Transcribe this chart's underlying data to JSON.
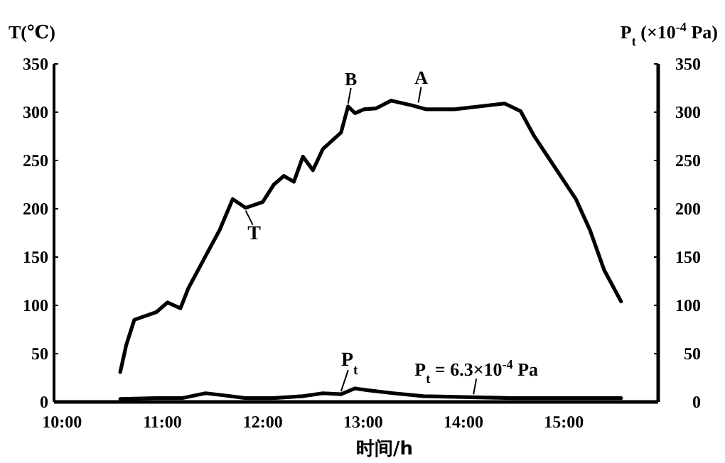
{
  "chart_data": {
    "type": "line",
    "ylabel": "T(℃)",
    "y2label": "P$_{t}$ (×10$^{-4}$ Pa)",
    "xlabel": "时间/h",
    "xlim": [
      9.92,
      15.94
    ],
    "xticks": [
      {
        "value": 10,
        "label": "10:00"
      },
      {
        "value": 11,
        "label": "11:00"
      },
      {
        "value": 12,
        "label": "12:00"
      },
      {
        "value": 13,
        "label": "13:00"
      },
      {
        "value": 14,
        "label": "14:00"
      },
      {
        "value": 15,
        "label": "15:00"
      }
    ],
    "ylim": [
      0,
      350
    ],
    "yticks": [
      0,
      50,
      100,
      150,
      200,
      250,
      300,
      350
    ],
    "y2lim": [
      0,
      350
    ],
    "y2ticks": [
      0,
      50,
      100,
      150,
      200,
      250,
      300,
      350
    ],
    "series": [
      {
        "name": "T",
        "color": "#000000",
        "x": [
          10.58,
          10.64,
          10.72,
          10.94,
          11.05,
          11.18,
          11.26,
          11.43,
          11.57,
          11.7,
          11.83,
          12.0,
          12.11,
          12.21,
          12.31,
          12.4,
          12.5,
          12.6,
          12.78,
          12.85,
          12.92,
          13.01,
          13.13,
          13.28,
          13.49,
          13.63,
          13.91,
          14.41,
          14.57,
          14.7,
          14.91,
          15.12,
          15.26,
          15.4,
          15.57
        ],
        "values": [
          31,
          59,
          85,
          93,
          103,
          97,
          118,
          151,
          178,
          210,
          201,
          207,
          225,
          234,
          228,
          254,
          240,
          262,
          279,
          306,
          299,
          303,
          304,
          312,
          307,
          303,
          303,
          309,
          301,
          276,
          243,
          210,
          178,
          137,
          104
        ]
      },
      {
        "name": "P$_{t}$",
        "color": "#000000",
        "axis": "y2",
        "x": [
          10.58,
          10.94,
          11.2,
          11.43,
          11.6,
          11.83,
          12.1,
          12.4,
          12.6,
          12.78,
          12.92,
          13.05,
          13.3,
          13.6,
          14.0,
          14.5,
          15.0,
          15.57
        ],
        "values": [
          3,
          4,
          4,
          9,
          7,
          4,
          4,
          6,
          9,
          8,
          14,
          12,
          9,
          6,
          5,
          4,
          4,
          4
        ]
      }
    ],
    "annotations": [
      {
        "text": "A",
        "x": 13.55,
        "y": 307
      },
      {
        "text": "B",
        "x": 12.85,
        "y": 306
      },
      {
        "text": "P$_{t}$ = 6.3×10$^{-4}$ Pa",
        "x": 14.1,
        "y": 5
      }
    ],
    "grid": false
  }
}
